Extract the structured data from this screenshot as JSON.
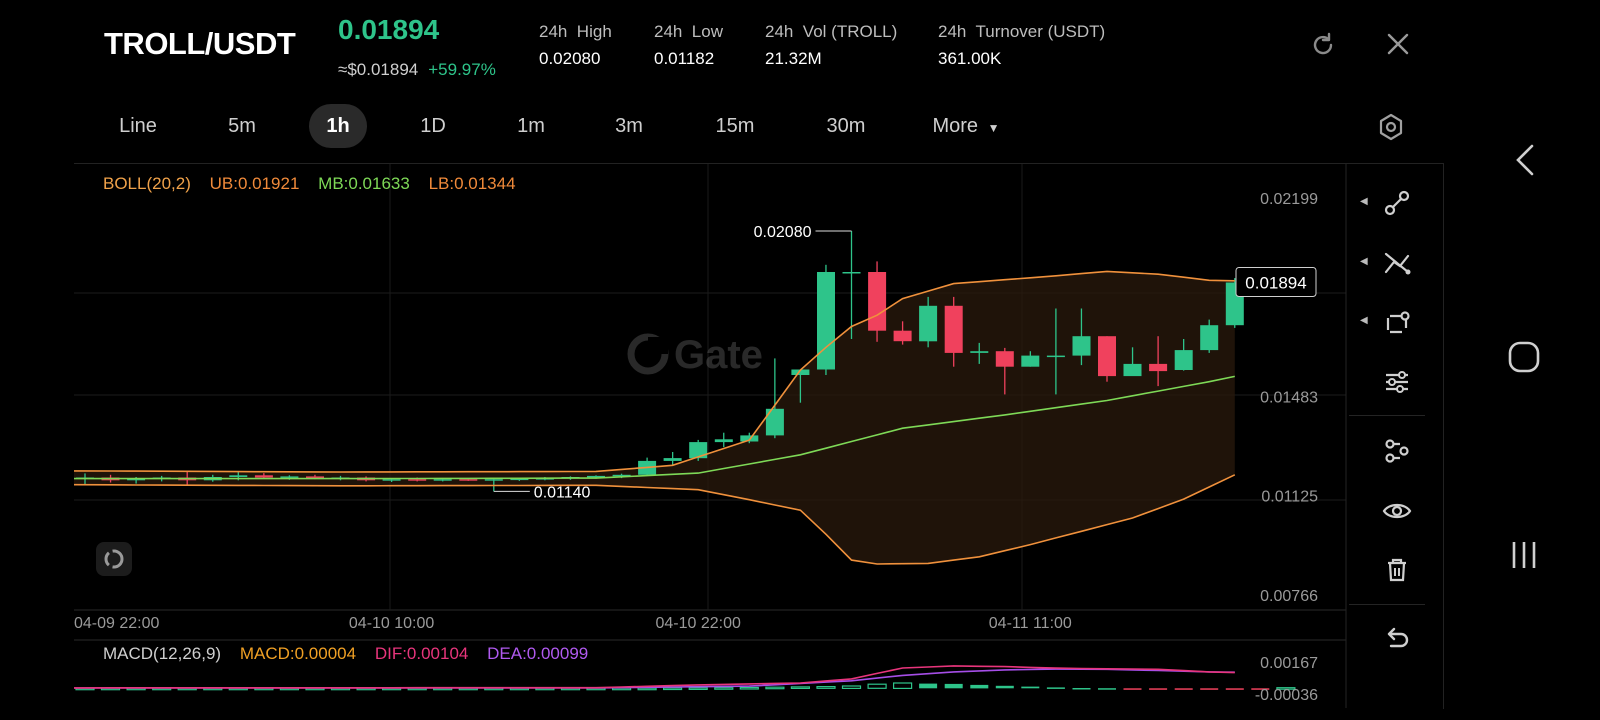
{
  "header": {
    "pair": "TROLL/USDT",
    "last_price": "0.01894",
    "approx_price": "≈$0.01894",
    "change": "+59.97%",
    "stats": [
      {
        "label": "24h  High",
        "value": "0.02080"
      },
      {
        "label": "24h  Low",
        "value": "0.01182"
      },
      {
        "label": "24h  Vol (TROLL)",
        "value": "21.32M"
      },
      {
        "label": "24h  Turnover (USDT)",
        "value": "361.00K"
      }
    ]
  },
  "tabs": [
    "Line",
    "5m",
    "1h",
    "1D",
    "1m",
    "3m",
    "15m",
    "30m",
    "More"
  ],
  "active_tab": "1h",
  "indicators": {
    "boll": {
      "name": "BOLL(20,2)",
      "ub": "UB:0.01921",
      "mb": "MB:0.01633",
      "lb": "LB:0.01344"
    },
    "macd": {
      "name": "MACD(12,26,9)",
      "macd": "MACD:0.00004",
      "dif": "DIF:0.00104",
      "dea": "DEA:0.00099"
    }
  },
  "watermark": "Gate",
  "colors": {
    "up": "#2ec48a",
    "down": "#f0415d",
    "ub": "#f0913c",
    "mb": "#7ed957",
    "dif": "#e8357c",
    "dea": "#a64ee8",
    "band_fill": "#2a1a0c"
  },
  "chart_data": {
    "type": "candlestick",
    "interval": "1h",
    "y_range": [
      0.00766,
      0.02199
    ],
    "y_ticks": [
      0.02199,
      0.01483,
      0.01125,
      0.00766
    ],
    "y_tick_labels": [
      "0.02199",
      "0.01483",
      "0.01125",
      "0.00766"
    ],
    "x_tick_labels": [
      "04-09 22:00",
      "04-10 10:00",
      "04-10 22:00",
      "04-11 11:00"
    ],
    "x_tick_index": [
      0,
      12,
      24,
      37
    ],
    "high_marker": {
      "label": "0.02080",
      "value": 0.0208,
      "index": 30
    },
    "low_marker": {
      "label": "0.01140",
      "value": 0.0114,
      "index": 16
    },
    "last_price_label": "0.01894",
    "last_price": 0.01894,
    "candles": [
      {
        "o": 0.01185,
        "h": 0.01205,
        "l": 0.01165,
        "c": 0.0119
      },
      {
        "o": 0.0119,
        "h": 0.012,
        "l": 0.01172,
        "c": 0.0118
      },
      {
        "o": 0.0118,
        "h": 0.01192,
        "l": 0.01168,
        "c": 0.01186
      },
      {
        "o": 0.01186,
        "h": 0.01196,
        "l": 0.01176,
        "c": 0.0119
      },
      {
        "o": 0.0119,
        "h": 0.01212,
        "l": 0.01165,
        "c": 0.0118
      },
      {
        "o": 0.0118,
        "h": 0.012,
        "l": 0.01175,
        "c": 0.01192
      },
      {
        "o": 0.01192,
        "h": 0.01212,
        "l": 0.0118,
        "c": 0.01198
      },
      {
        "o": 0.01198,
        "h": 0.01206,
        "l": 0.01186,
        "c": 0.0119
      },
      {
        "o": 0.0119,
        "h": 0.01198,
        "l": 0.01182,
        "c": 0.01194
      },
      {
        "o": 0.01194,
        "h": 0.012,
        "l": 0.01184,
        "c": 0.01186
      },
      {
        "o": 0.01188,
        "h": 0.01196,
        "l": 0.0118,
        "c": 0.0119
      },
      {
        "o": 0.0119,
        "h": 0.01194,
        "l": 0.01176,
        "c": 0.0118
      },
      {
        "o": 0.0118,
        "h": 0.01188,
        "l": 0.01174,
        "c": 0.01184
      },
      {
        "o": 0.01184,
        "h": 0.0119,
        "l": 0.01176,
        "c": 0.01182
      },
      {
        "o": 0.01182,
        "h": 0.01188,
        "l": 0.01176,
        "c": 0.01184
      },
      {
        "o": 0.01184,
        "h": 0.01188,
        "l": 0.01178,
        "c": 0.01182
      },
      {
        "o": 0.01182,
        "h": 0.01186,
        "l": 0.0114,
        "c": 0.01184
      },
      {
        "o": 0.01184,
        "h": 0.0119,
        "l": 0.01178,
        "c": 0.01186
      },
      {
        "o": 0.01186,
        "h": 0.01192,
        "l": 0.0118,
        "c": 0.01188
      },
      {
        "o": 0.01188,
        "h": 0.01194,
        "l": 0.01182,
        "c": 0.01192
      },
      {
        "o": 0.01192,
        "h": 0.01198,
        "l": 0.01186,
        "c": 0.01196
      },
      {
        "o": 0.01196,
        "h": 0.01204,
        "l": 0.01188,
        "c": 0.012
      },
      {
        "o": 0.012,
        "h": 0.01262,
        "l": 0.01196,
        "c": 0.0125
      },
      {
        "o": 0.0125,
        "h": 0.01282,
        "l": 0.01236,
        "c": 0.0126
      },
      {
        "o": 0.0126,
        "h": 0.01326,
        "l": 0.0125,
        "c": 0.01318
      },
      {
        "o": 0.01318,
        "h": 0.01352,
        "l": 0.013,
        "c": 0.01328
      },
      {
        "o": 0.0132,
        "h": 0.01352,
        "l": 0.01314,
        "c": 0.01342
      },
      {
        "o": 0.01342,
        "h": 0.0162,
        "l": 0.01332,
        "c": 0.01438
      },
      {
        "o": 0.0156,
        "h": 0.01576,
        "l": 0.0146,
        "c": 0.0158
      },
      {
        "o": 0.0158,
        "h": 0.01958,
        "l": 0.0156,
        "c": 0.01932
      },
      {
        "o": 0.01932,
        "h": 0.0208,
        "l": 0.0169,
        "c": 0.01932
      },
      {
        "o": 0.01932,
        "h": 0.0197,
        "l": 0.0168,
        "c": 0.0172
      },
      {
        "o": 0.0172,
        "h": 0.01754,
        "l": 0.0167,
        "c": 0.01682
      },
      {
        "o": 0.01682,
        "h": 0.01842,
        "l": 0.0166,
        "c": 0.0181
      },
      {
        "o": 0.0181,
        "h": 0.01842,
        "l": 0.0159,
        "c": 0.0164
      },
      {
        "o": 0.0164,
        "h": 0.01676,
        "l": 0.016,
        "c": 0.01646
      },
      {
        "o": 0.01646,
        "h": 0.01658,
        "l": 0.0149,
        "c": 0.0159
      },
      {
        "o": 0.0159,
        "h": 0.01646,
        "l": 0.0159,
        "c": 0.0163
      },
      {
        "o": 0.0163,
        "h": 0.018,
        "l": 0.0149,
        "c": 0.0163
      },
      {
        "o": 0.0163,
        "h": 0.018,
        "l": 0.01596,
        "c": 0.017
      },
      {
        "o": 0.017,
        "h": 0.017,
        "l": 0.01536,
        "c": 0.01556
      },
      {
        "o": 0.01556,
        "h": 0.0166,
        "l": 0.0157,
        "c": 0.016
      },
      {
        "o": 0.016,
        "h": 0.017,
        "l": 0.0152,
        "c": 0.01574
      },
      {
        "o": 0.01578,
        "h": 0.0169,
        "l": 0.01576,
        "c": 0.0165
      },
      {
        "o": 0.0165,
        "h": 0.0176,
        "l": 0.0164,
        "c": 0.0174
      },
      {
        "o": 0.0174,
        "h": 0.0191,
        "l": 0.0173,
        "c": 0.01894
      }
    ],
    "boll_upper": [
      {
        "i": 0,
        "v": 0.01214
      },
      {
        "i": 10,
        "v": 0.0121
      },
      {
        "i": 20,
        "v": 0.01212
      },
      {
        "i": 23,
        "v": 0.01234
      },
      {
        "i": 26,
        "v": 0.01325
      },
      {
        "i": 28,
        "v": 0.01578
      },
      {
        "i": 29,
        "v": 0.0166
      },
      {
        "i": 30,
        "v": 0.01735
      },
      {
        "i": 31,
        "v": 0.01776
      },
      {
        "i": 32,
        "v": 0.01836
      },
      {
        "i": 34,
        "v": 0.0189
      },
      {
        "i": 38,
        "v": 0.01918
      },
      {
        "i": 40,
        "v": 0.01934
      },
      {
        "i": 42,
        "v": 0.01924
      },
      {
        "i": 44,
        "v": 0.01902
      },
      {
        "i": 46,
        "v": 0.01898
      },
      {
        "i": 47,
        "v": 0.01921
      }
    ],
    "boll_mid": [
      {
        "i": 0,
        "v": 0.01186
      },
      {
        "i": 10,
        "v": 0.01186
      },
      {
        "i": 20,
        "v": 0.01188
      },
      {
        "i": 24,
        "v": 0.01206
      },
      {
        "i": 28,
        "v": 0.01272
      },
      {
        "i": 30,
        "v": 0.0132
      },
      {
        "i": 32,
        "v": 0.01368
      },
      {
        "i": 36,
        "v": 0.01416
      },
      {
        "i": 40,
        "v": 0.01468
      },
      {
        "i": 44,
        "v": 0.01536
      },
      {
        "i": 46,
        "v": 0.01574
      },
      {
        "i": 47,
        "v": 0.01633
      }
    ],
    "boll_lower": [
      {
        "i": 0,
        "v": 0.01164
      },
      {
        "i": 10,
        "v": 0.0116
      },
      {
        "i": 20,
        "v": 0.01162
      },
      {
        "i": 24,
        "v": 0.01146
      },
      {
        "i": 26,
        "v": 0.0111
      },
      {
        "i": 28,
        "v": 0.01072
      },
      {
        "i": 29,
        "v": 0.00985
      },
      {
        "i": 30,
        "v": 0.00892
      },
      {
        "i": 31,
        "v": 0.00878
      },
      {
        "i": 33,
        "v": 0.0088
      },
      {
        "i": 35,
        "v": 0.00904
      },
      {
        "i": 37,
        "v": 0.00948
      },
      {
        "i": 39,
        "v": 0.00996
      },
      {
        "i": 41,
        "v": 0.01044
      },
      {
        "i": 43,
        "v": 0.01112
      },
      {
        "i": 45,
        "v": 0.012
      },
      {
        "i": 47,
        "v": 0.01344
      }
    ],
    "macd": {
      "y_ticks": [
        0.00167,
        -0.00036
      ],
      "y_tick_labels": [
        "0.00167",
        "-0.00036"
      ],
      "y_range": [
        -0.00036,
        0.00167
      ],
      "hist": [
        1e-05,
        1e-05,
        1e-05,
        1e-05,
        1e-05,
        1e-05,
        1e-05,
        1e-05,
        1e-05,
        1e-05,
        1e-05,
        1e-05,
        1e-05,
        1e-05,
        1e-05,
        1e-05,
        1e-05,
        1e-05,
        1e-05,
        1e-05,
        1e-05,
        1e-05,
        1e-05,
        2e-05,
        3e-05,
        4e-05,
        5e-05,
        7e-05,
        9e-05,
        0.00011,
        0.00015,
        0.00026,
        0.00034,
        0.0003,
        0.00028,
        0.00022,
        0.00016,
        0.00011,
        6e-05,
        2e-05,
        1e-05,
        -2e-05,
        -4e-05,
        -5e-05,
        -6e-05,
        -7e-05,
        -4e-05,
        4e-05
      ],
      "dif": [
        {
          "i": 0,
          "v": 3e-05
        },
        {
          "i": 20,
          "v": 4e-05
        },
        {
          "i": 24,
          "v": 0.00022
        },
        {
          "i": 28,
          "v": 0.00034
        },
        {
          "i": 30,
          "v": 0.0006
        },
        {
          "i": 32,
          "v": 0.00129
        },
        {
          "i": 34,
          "v": 0.00142
        },
        {
          "i": 36,
          "v": 0.00138
        },
        {
          "i": 38,
          "v": 0.00128
        },
        {
          "i": 40,
          "v": 0.00124
        },
        {
          "i": 42,
          "v": 0.00121
        },
        {
          "i": 44,
          "v": 0.00104
        },
        {
          "i": 46,
          "v": 0.00096
        },
        {
          "i": 47,
          "v": 0.00104
        }
      ],
      "dea": [
        {
          "i": 0,
          "v": 2e-05
        },
        {
          "i": 20,
          "v": 3e-05
        },
        {
          "i": 26,
          "v": 0.00014
        },
        {
          "i": 30,
          "v": 0.00048
        },
        {
          "i": 32,
          "v": 0.00082
        },
        {
          "i": 34,
          "v": 0.00104
        },
        {
          "i": 36,
          "v": 0.00117
        },
        {
          "i": 38,
          "v": 0.00122
        },
        {
          "i": 40,
          "v": 0.00121
        },
        {
          "i": 42,
          "v": 0.00113
        },
        {
          "i": 44,
          "v": 0.00104
        },
        {
          "i": 47,
          "v": 0.00099
        }
      ]
    }
  }
}
